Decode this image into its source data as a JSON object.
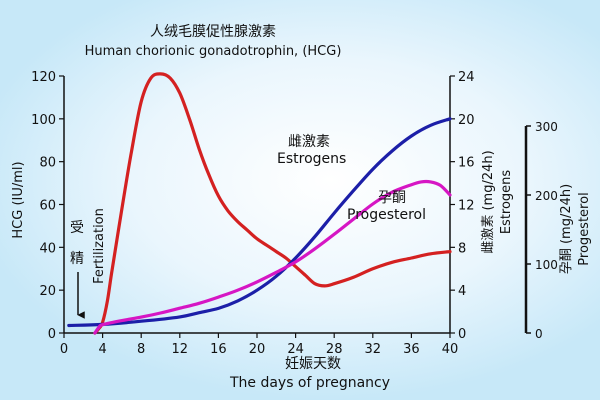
{
  "chart_data": {
    "type": "line",
    "title_cn": "人绒毛膜促性腺激素",
    "title_en": "Human chorionic gonadotrophin, (HCG)",
    "xlabel_cn": "妊娠天数",
    "xlabel_en": "The days of pregnancy",
    "x_ticks": [
      "0",
      "4",
      "8",
      "12",
      "16",
      "20",
      "24",
      "28",
      "32",
      "36",
      "40"
    ],
    "xlim": [
      0,
      40
    ],
    "axes": {
      "hcg": {
        "label": "HCG (IU/ml)",
        "ylim": [
          0,
          120
        ],
        "ticks": [
          "0",
          "20",
          "40",
          "60",
          "80",
          "100",
          "120"
        ]
      },
      "estrogens": {
        "label_cn": "雌激素 (mg/24h)",
        "label_en": "Estrogens",
        "ylim": [
          0,
          24
        ],
        "ticks": [
          "0",
          "4",
          "8",
          "12",
          "16",
          "20",
          "24"
        ]
      },
      "progesterol": {
        "label_cn": "孕酮 (mg/24h)",
        "label_en": "Progesterol",
        "ylim": [
          0,
          300
        ],
        "ticks": [
          "0",
          "100",
          "200",
          "300"
        ]
      }
    },
    "annotation": {
      "chars": [
        "受",
        "精"
      ],
      "en": "Fertilization",
      "x": 1.5
    },
    "series": [
      {
        "name": "HCG",
        "axis": "hcg",
        "color": "#d42121",
        "points": [
          [
            3.2,
            0
          ],
          [
            3.6,
            2
          ],
          [
            4,
            5
          ],
          [
            4.5,
            15
          ],
          [
            5,
            30
          ],
          [
            6,
            58
          ],
          [
            7,
            85
          ],
          [
            8,
            108
          ],
          [
            9,
            119
          ],
          [
            10,
            121
          ],
          [
            11,
            119
          ],
          [
            12,
            112
          ],
          [
            13,
            100
          ],
          [
            14,
            86
          ],
          [
            15,
            74
          ],
          [
            16,
            64
          ],
          [
            17,
            57
          ],
          [
            18,
            52
          ],
          [
            19,
            48
          ],
          [
            20,
            44
          ],
          [
            21,
            41
          ],
          [
            22,
            38
          ],
          [
            23,
            35
          ],
          [
            24,
            31
          ],
          [
            25,
            27
          ],
          [
            26,
            23
          ],
          [
            27,
            22
          ],
          [
            28,
            23
          ],
          [
            30,
            26
          ],
          [
            32,
            30
          ],
          [
            34,
            33
          ],
          [
            36,
            35
          ],
          [
            38,
            37
          ],
          [
            40,
            38
          ]
        ]
      },
      {
        "name_cn": "雌激素",
        "name_en": "Estrogens",
        "axis": "estrogens",
        "color": "#1c1fa8",
        "points": [
          [
            0.5,
            0.7
          ],
          [
            4,
            0.8
          ],
          [
            8,
            1.1
          ],
          [
            12,
            1.5
          ],
          [
            14,
            1.9
          ],
          [
            16,
            2.3
          ],
          [
            18,
            3
          ],
          [
            20,
            4
          ],
          [
            22,
            5.3
          ],
          [
            24,
            7
          ],
          [
            26,
            9
          ],
          [
            28,
            11.2
          ],
          [
            30,
            13.3
          ],
          [
            32,
            15.3
          ],
          [
            34,
            17
          ],
          [
            36,
            18.4
          ],
          [
            38,
            19.4
          ],
          [
            40,
            20
          ]
        ]
      },
      {
        "name_cn": "孕酮",
        "name_en": "Progesterol",
        "axis": "progesterol",
        "color": "#d616c4",
        "points": [
          [
            3.2,
            0
          ],
          [
            3.6,
            8
          ],
          [
            4,
            12
          ],
          [
            6,
            18
          ],
          [
            8,
            23
          ],
          [
            10,
            29
          ],
          [
            12,
            36
          ],
          [
            14,
            43
          ],
          [
            16,
            52
          ],
          [
            18,
            62
          ],
          [
            20,
            74
          ],
          [
            22,
            88
          ],
          [
            24,
            103
          ],
          [
            26,
            122
          ],
          [
            28,
            143
          ],
          [
            30,
            165
          ],
          [
            32,
            187
          ],
          [
            34,
            204
          ],
          [
            36,
            215
          ],
          [
            37,
            219
          ],
          [
            38,
            219
          ],
          [
            39,
            214
          ],
          [
            40,
            200
          ]
        ]
      }
    ]
  }
}
